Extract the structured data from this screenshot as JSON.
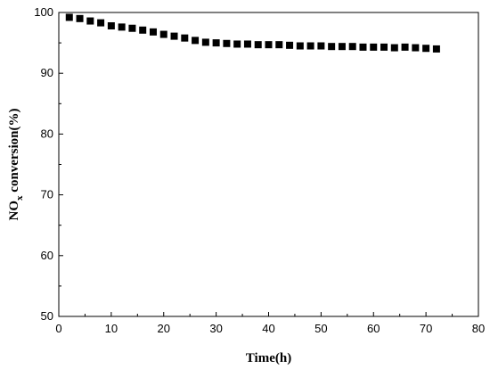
{
  "chart_data": {
    "type": "scatter",
    "xlabel": "Time(h)",
    "ylabel": {
      "main": "NO",
      "sub": "x",
      "rest": " conversion(%)"
    },
    "xlim": [
      0,
      80
    ],
    "ylim": [
      50,
      100
    ],
    "x_ticks": [
      0,
      10,
      20,
      30,
      40,
      50,
      60,
      70,
      80
    ],
    "y_ticks": [
      50,
      60,
      70,
      80,
      90,
      100
    ],
    "grid": false,
    "marker": "square",
    "marker_color": "#000000",
    "series": [
      {
        "x": [
          2,
          4,
          6,
          8,
          10,
          12,
          14,
          16,
          18,
          20,
          22,
          24,
          26,
          28,
          30,
          32,
          34,
          36,
          38,
          40,
          42,
          44,
          46,
          48,
          50,
          52,
          54,
          56,
          58,
          60,
          62,
          64,
          66,
          68,
          70,
          72
        ],
        "y": [
          99.2,
          99.0,
          98.6,
          98.3,
          97.8,
          97.6,
          97.4,
          97.1,
          96.8,
          96.4,
          96.1,
          95.8,
          95.4,
          95.1,
          95.0,
          94.9,
          94.8,
          94.8,
          94.7,
          94.7,
          94.7,
          94.6,
          94.5,
          94.5,
          94.5,
          94.4,
          94.4,
          94.4,
          94.3,
          94.3,
          94.3,
          94.2,
          94.3,
          94.2,
          94.1,
          94.0
        ]
      }
    ]
  }
}
